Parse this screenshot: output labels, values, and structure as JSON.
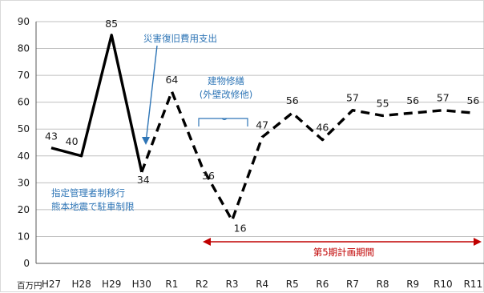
{
  "chart_data": {
    "type": "line",
    "ylabel": "百万円",
    "ylim": [
      0,
      90
    ],
    "yticks": [
      0,
      10,
      20,
      30,
      40,
      50,
      60,
      70,
      80,
      90
    ],
    "grid": true,
    "categories": [
      "H27",
      "H28",
      "H29",
      "H30",
      "R1",
      "R2",
      "R3",
      "R4",
      "R5",
      "R6",
      "R7",
      "R8",
      "R9",
      "R10",
      "R11"
    ],
    "series": [
      {
        "values": [
          43,
          40,
          85,
          34,
          64,
          36,
          16,
          47,
          56,
          46,
          57,
          55,
          56,
          57,
          56
        ],
        "data_labels": [
          "43",
          "40",
          "85",
          "34",
          "64",
          "36",
          "16",
          "47",
          "56",
          "46",
          "57",
          "55",
          "56",
          "57",
          "56"
        ],
        "style_note": "solid H27–H30, dashed H30–R11",
        "color": "#000000"
      }
    ],
    "annotations": [
      {
        "id": "disaster",
        "text": "災害復旧費用支出",
        "color": "#2e75b6"
      },
      {
        "id": "repair",
        "lines": [
          "建物修繕",
          "(外壁改修他)"
        ],
        "color": "#2e75b6"
      },
      {
        "id": "management",
        "lines": [
          "指定管理者制移行",
          "熊本地震で駐車制限"
        ],
        "color": "#2e75b6"
      },
      {
        "id": "plan-period",
        "text": "第5期計画期間",
        "color": "#c00000"
      }
    ]
  }
}
